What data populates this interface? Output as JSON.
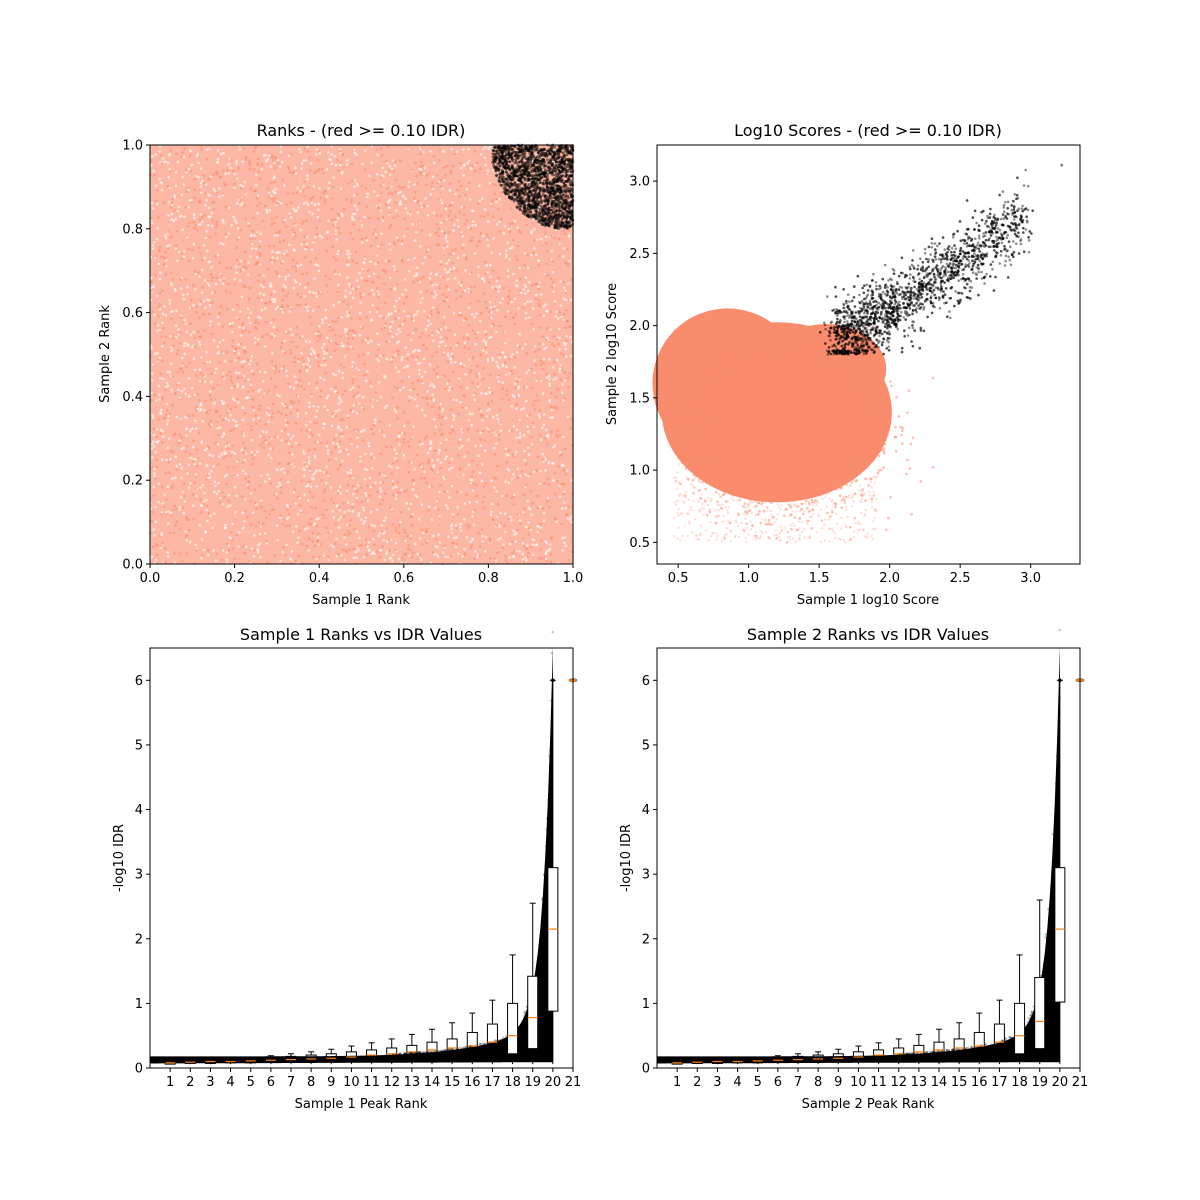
{
  "chart_data": [
    {
      "type": "scatter",
      "title": "Ranks - (red >= 0.10 IDR)",
      "xlabel": "Sample 1 Rank",
      "ylabel": "Sample 2 Rank",
      "xlim": [
        0.0,
        1.0
      ],
      "ylim": [
        0.0,
        1.0
      ],
      "xticks": [
        "0.0",
        "0.2",
        "0.4",
        "0.6",
        "0.8",
        "1.0"
      ],
      "yticks": [
        "0.0",
        "0.2",
        "0.4",
        "0.6",
        "0.8",
        "1.0"
      ],
      "grid": false,
      "series": [
        {
          "color": "#fa8c6e",
          "description": "uniform cloud over 0..1 x 0..1"
        },
        {
          "color": "#000000",
          "description": "top-right corner, rank > ~0.8 in both samples"
        }
      ]
    },
    {
      "type": "scatter",
      "title": "Log10 Scores - (red >= 0.10 IDR)",
      "xlabel": "Sample 1 log10 Score",
      "ylabel": "Sample 2 log10 Score",
      "xlim": [
        0.35,
        3.35
      ],
      "ylim": [
        0.35,
        3.25
      ],
      "xticks": [
        "0.5",
        "1.0",
        "1.5",
        "2.0",
        "2.5",
        "3.0"
      ],
      "yticks": [
        "0.5",
        "1.0",
        "1.5",
        "2.0",
        "2.5",
        "3.0"
      ],
      "grid": false,
      "series": [
        {
          "color": "#fa8c6e",
          "description": "dense cloud, x 0.47-2.3, y 0.5-2.0"
        },
        {
          "color": "#000000",
          "description": "elongated cloud, x 1.6-3.0, y 1.8-2.85"
        }
      ]
    },
    {
      "type": "scatter",
      "title": "Sample 1 Ranks vs IDR Values",
      "xlabel": "Sample 1 Peak Rank",
      "ylabel": "-log10 IDR",
      "xlim": [
        0,
        21
      ],
      "ylim": [
        0,
        6.5
      ],
      "xticks": [
        "1",
        "2",
        "3",
        "4",
        "5",
        "6",
        "7",
        "8",
        "9",
        "10",
        "11",
        "12",
        "13",
        "14",
        "15",
        "16",
        "17",
        "18",
        "19",
        "20",
        "21"
      ],
      "yticks": [
        "0",
        "1",
        "2",
        "3",
        "4",
        "5",
        "6"
      ],
      "boxplot_medians": [
        0.08,
        0.09,
        0.1,
        0.1,
        0.11,
        0.12,
        0.13,
        0.14,
        0.15,
        0.17,
        0.2,
        0.22,
        0.25,
        0.28,
        0.31,
        0.34,
        0.4,
        0.5,
        0.78,
        2.15
      ],
      "boxplot_q3": [
        0.1,
        0.11,
        0.12,
        0.13,
        0.14,
        0.16,
        0.18,
        0.2,
        0.22,
        0.25,
        0.28,
        0.31,
        0.35,
        0.4,
        0.45,
        0.55,
        0.68,
        1.0,
        1.42,
        3.1
      ],
      "boxplot_q1": [
        0.06,
        0.07,
        0.07,
        0.08,
        0.08,
        0.09,
        0.1,
        0.1,
        0.11,
        0.12,
        0.13,
        0.14,
        0.15,
        0.16,
        0.17,
        0.18,
        0.2,
        0.22,
        0.3,
        0.88
      ],
      "boxplot_whisker_top": [
        0.12,
        0.13,
        0.14,
        0.15,
        0.17,
        0.19,
        0.22,
        0.25,
        0.29,
        0.34,
        0.39,
        0.45,
        0.52,
        0.6,
        0.7,
        0.85,
        1.05,
        1.75,
        2.55,
        6.0
      ],
      "grid": false
    },
    {
      "type": "scatter",
      "title": "Sample 2 Ranks vs IDR Values",
      "xlabel": "Sample 2 Peak Rank",
      "ylabel": "-log10 IDR",
      "xlim": [
        0,
        21
      ],
      "ylim": [
        0,
        6.5
      ],
      "xticks": [
        "1",
        "2",
        "3",
        "4",
        "5",
        "6",
        "7",
        "8",
        "9",
        "10",
        "11",
        "12",
        "13",
        "14",
        "15",
        "16",
        "17",
        "18",
        "19",
        "20",
        "21"
      ],
      "yticks": [
        "0",
        "1",
        "2",
        "3",
        "4",
        "5",
        "6"
      ],
      "boxplot_medians": [
        0.08,
        0.09,
        0.1,
        0.1,
        0.11,
        0.12,
        0.13,
        0.14,
        0.15,
        0.17,
        0.2,
        0.22,
        0.25,
        0.28,
        0.31,
        0.34,
        0.4,
        0.5,
        0.72,
        2.15
      ],
      "boxplot_q3": [
        0.1,
        0.11,
        0.12,
        0.13,
        0.14,
        0.16,
        0.18,
        0.2,
        0.22,
        0.25,
        0.28,
        0.31,
        0.35,
        0.4,
        0.45,
        0.55,
        0.68,
        1.0,
        1.4,
        3.1
      ],
      "boxplot_q1": [
        0.06,
        0.07,
        0.07,
        0.08,
        0.08,
        0.09,
        0.1,
        0.1,
        0.11,
        0.12,
        0.13,
        0.14,
        0.15,
        0.16,
        0.17,
        0.18,
        0.2,
        0.22,
        0.3,
        1.02
      ],
      "boxplot_whisker_top": [
        0.12,
        0.13,
        0.14,
        0.15,
        0.17,
        0.19,
        0.22,
        0.25,
        0.29,
        0.34,
        0.39,
        0.45,
        0.52,
        0.6,
        0.7,
        0.85,
        1.05,
        1.75,
        2.6,
        6.0
      ],
      "grid": false
    }
  ]
}
